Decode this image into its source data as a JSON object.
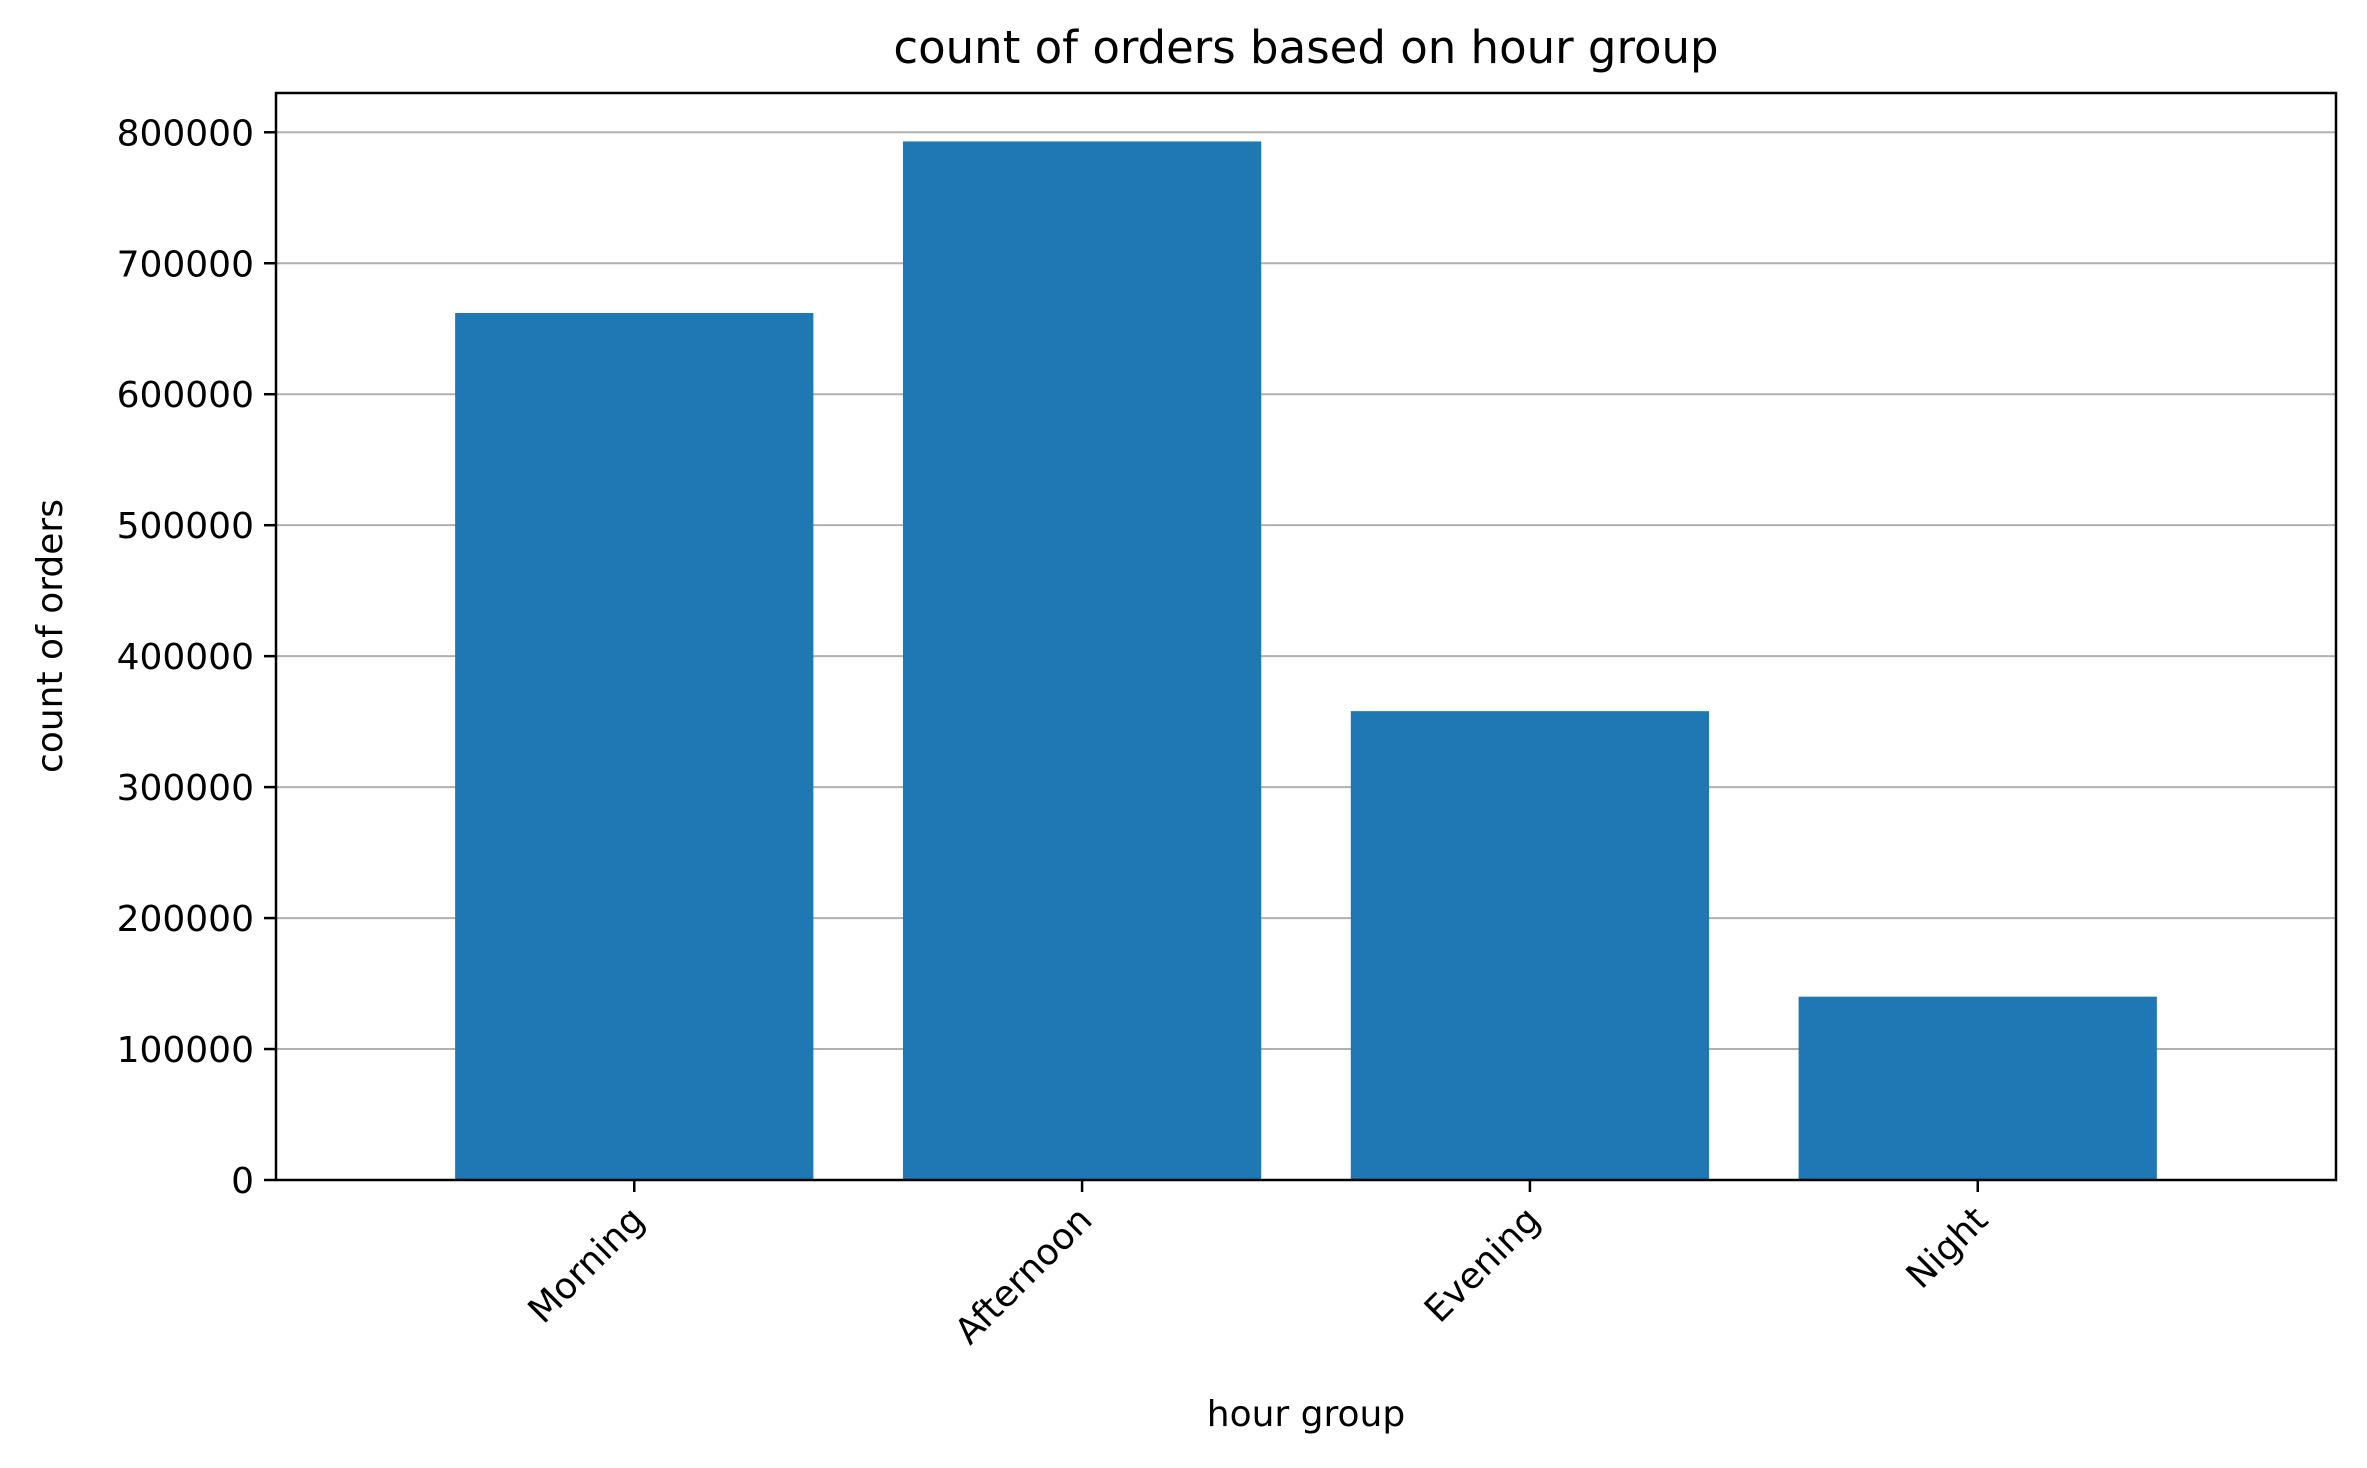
{
  "chart_data": {
    "type": "bar",
    "title": "count of orders based on hour group",
    "xlabel": "hour group",
    "ylabel": "count of orders",
    "categories": [
      "Morning",
      "Afternoon",
      "Evening",
      "Night"
    ],
    "values": [
      662000,
      793000,
      358000,
      140000
    ],
    "ylim": [
      0,
      830000
    ],
    "yticks": [
      0,
      100000,
      200000,
      300000,
      400000,
      500000,
      600000,
      700000,
      800000
    ],
    "ytick_labels": [
      "0",
      "100000",
      "200000",
      "300000",
      "400000",
      "500000",
      "600000",
      "700000",
      "800000"
    ],
    "grid": "y",
    "xtick_rotation": 45,
    "colors": {
      "bar": "#1f77b4",
      "grid": "#b0b0b0",
      "axis": "#000000"
    }
  }
}
